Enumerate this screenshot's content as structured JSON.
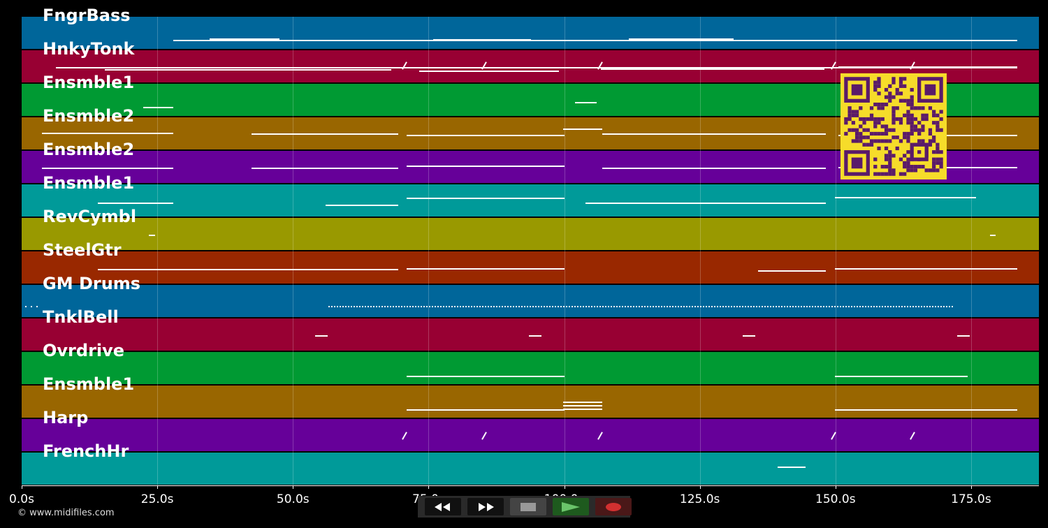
{
  "tracks": [
    {
      "name": "FngrBass",
      "color": "#00669a"
    },
    {
      "name": "HnkyTonk",
      "color": "#980033"
    },
    {
      "name": "Ensmble1",
      "color": "#009a33"
    },
    {
      "name": "Ensmble2",
      "color": "#996600"
    },
    {
      "name": "Ensmble2",
      "color": "#660099"
    },
    {
      "name": "Ensmble1",
      "color": "#009a99"
    },
    {
      "name": "RevCymbl",
      "color": "#999900"
    },
    {
      "name": "SteelGtr",
      "color": "#992800"
    },
    {
      "name": "GM Drums",
      "color": "#00669a"
    },
    {
      "name": "TnklBell",
      "color": "#980033"
    },
    {
      "name": "Ovrdrive",
      "color": "#009a33"
    },
    {
      "name": "Ensmble1",
      "color": "#996600"
    },
    {
      "name": "Harp",
      "color": "#660099"
    },
    {
      "name": "FrenchHr",
      "color": "#009a99"
    }
  ],
  "timeline": {
    "ticks": [
      "0.0s",
      "25.0s",
      "50.0s",
      "75.0s",
      "100.0s",
      "125.0s",
      "150.0s",
      "175.0s"
    ],
    "tick_seconds": [
      0,
      25,
      50,
      75,
      100,
      125,
      150,
      175
    ],
    "max_seconds": 187.5
  },
  "transport": {
    "rewind": "rewind-icon",
    "fast_forward": "fast-forward-icon",
    "stop": "stop-icon",
    "play": "play-icon",
    "record": "record-icon"
  },
  "qr": {
    "color_fg": "#5a1a6a",
    "color_bg": "#f6dc2a"
  },
  "footer": {
    "copyright": "© www.midifiles.com"
  }
}
